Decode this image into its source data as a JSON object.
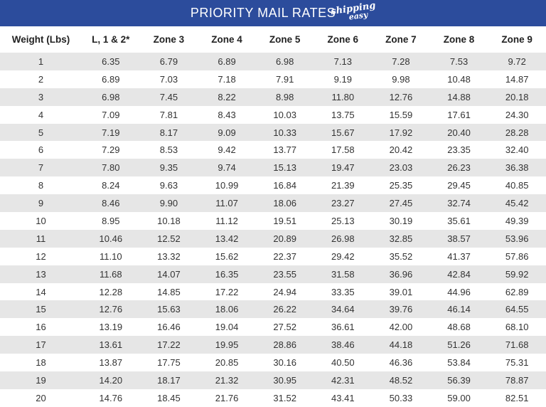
{
  "header": {
    "title": "PRIORITY MAIL RATES",
    "logo": [
      "shipping",
      "easy"
    ]
  },
  "table": {
    "columns": [
      "Weight (Lbs)",
      "L, 1 & 2*",
      "Zone 3",
      "Zone 4",
      "Zone 5",
      "Zone 6",
      "Zone 7",
      "Zone 8",
      "Zone 9"
    ],
    "rows": [
      [
        "1",
        "6.35",
        "6.79",
        "6.89",
        "6.98",
        "7.13",
        "7.28",
        "7.53",
        "9.72"
      ],
      [
        "2",
        "6.89",
        "7.03",
        "7.18",
        "7.91",
        "9.19",
        "9.98",
        "10.48",
        "14.87"
      ],
      [
        "3",
        "6.98",
        "7.45",
        "8.22",
        "8.98",
        "11.80",
        "12.76",
        "14.88",
        "20.18"
      ],
      [
        "4",
        "7.09",
        "7.81",
        "8.43",
        "10.03",
        "13.75",
        "15.59",
        "17.61",
        "24.30"
      ],
      [
        "5",
        "7.19",
        "8.17",
        "9.09",
        "10.33",
        "15.67",
        "17.92",
        "20.40",
        "28.28"
      ],
      [
        "6",
        "7.29",
        "8.53",
        "9.42",
        "13.77",
        "17.58",
        "20.42",
        "23.35",
        "32.40"
      ],
      [
        "7",
        "7.80",
        "9.35",
        "9.74",
        "15.13",
        "19.47",
        "23.03",
        "26.23",
        "36.38"
      ],
      [
        "8",
        "8.24",
        "9.63",
        "10.99",
        "16.84",
        "21.39",
        "25.35",
        "29.45",
        "40.85"
      ],
      [
        "9",
        "8.46",
        "9.90",
        "11.07",
        "18.06",
        "23.27",
        "27.45",
        "32.74",
        "45.42"
      ],
      [
        "10",
        "8.95",
        "10.18",
        "11.12",
        "19.51",
        "25.13",
        "30.19",
        "35.61",
        "49.39"
      ],
      [
        "11",
        "10.46",
        "12.52",
        "13.42",
        "20.89",
        "26.98",
        "32.85",
        "38.57",
        "53.96"
      ],
      [
        "12",
        "11.10",
        "13.32",
        "15.62",
        "22.37",
        "29.42",
        "35.52",
        "41.37",
        "57.86"
      ],
      [
        "13",
        "11.68",
        "14.07",
        "16.35",
        "23.55",
        "31.58",
        "36.96",
        "42.84",
        "59.92"
      ],
      [
        "14",
        "12.28",
        "14.85",
        "17.22",
        "24.94",
        "33.35",
        "39.01",
        "44.96",
        "62.89"
      ],
      [
        "15",
        "12.76",
        "15.63",
        "18.06",
        "26.22",
        "34.64",
        "39.76",
        "46.14",
        "64.55"
      ],
      [
        "16",
        "13.19",
        "16.46",
        "19.04",
        "27.52",
        "36.61",
        "42.00",
        "48.68",
        "68.10"
      ],
      [
        "17",
        "13.61",
        "17.22",
        "19.95",
        "28.86",
        "38.46",
        "44.18",
        "51.26",
        "71.68"
      ],
      [
        "18",
        "13.87",
        "17.75",
        "20.85",
        "30.16",
        "40.50",
        "46.36",
        "53.84",
        "75.31"
      ],
      [
        "19",
        "14.20",
        "18.17",
        "21.32",
        "30.95",
        "42.31",
        "48.52",
        "56.39",
        "78.87"
      ],
      [
        "20",
        "14.76",
        "18.45",
        "21.76",
        "31.52",
        "43.41",
        "50.33",
        "59.00",
        "82.51"
      ]
    ]
  }
}
